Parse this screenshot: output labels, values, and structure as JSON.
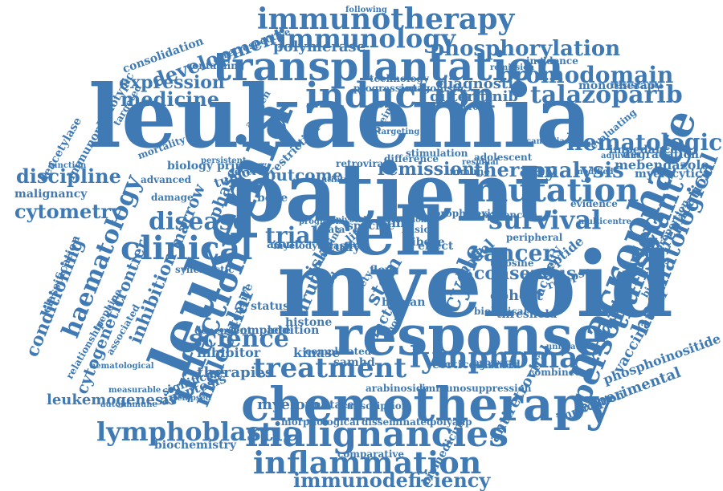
{
  "colors": {
    "word": "#3f7ab4",
    "background": "#ffffff"
  },
  "words": [
    "leukaemia",
    "myeloid",
    "patient",
    "cell",
    "response",
    "leukemia",
    "chemotherapy",
    "transplantation",
    "induction",
    "malignancies",
    "immunotherapy",
    "immunology",
    "treatment",
    "lymphoma",
    "macrophage",
    "mutation",
    "inflammation",
    "clinical",
    "talazoparib",
    "personalised",
    "lymphoblastic",
    "infection",
    "survival",
    "disease",
    "science",
    "cancer",
    "hematologic",
    "haematology",
    "bromodomain",
    "phosphorylation",
    "immunodeficiency",
    "analysis",
    "therapy",
    "remission",
    "medicine",
    "expression",
    "cytometry",
    "discipline",
    "transplant",
    "haematological",
    "development",
    "trial",
    "molecular",
    "cycle",
    "consensus",
    "outcome",
    "leukemogenesis",
    "inhibition",
    "frontier",
    "conditioning",
    "cytogenetic",
    "gilteritinib",
    "myeloma",
    "therapies",
    "inhibitor",
    "apoptosis",
    "significant",
    "kinase",
    "mutated",
    "biochemistry",
    "antiretroviral",
    "experimental",
    "phosphoinositide",
    "vaccination",
    "replication",
    "standard",
    "cohort",
    "model",
    "peptide",
    "activity",
    "relapse",
    "stem",
    "drug",
    "risk",
    "factor",
    "polymerase",
    "diagnostic",
    "monotherapy",
    "mebendazole",
    "degradation",
    "impedance",
    "myelocytic",
    "evidence",
    "tyrosine",
    "biomedicine",
    "malignancy",
    "biology",
    "marrow",
    "phase",
    "tumour",
    "primary",
    "bone",
    "study",
    "life",
    "status",
    "histone",
    "samhd",
    "threshold",
    "corticosteroid",
    "transcription",
    "disseminated",
    "morphological",
    "comparative",
    "polyadp",
    "arabinoside",
    "immunosuppression",
    "implication",
    "classification",
    "deacetylase",
    "immunophenotypic",
    "consolidation",
    "retrospective",
    "technology",
    "incidence",
    "progression",
    "antagonistic",
    "containing",
    "targeted",
    "mortality",
    "antigen",
    "restriction",
    "advanced",
    "damage",
    "severe",
    "adult",
    "specific",
    "human",
    "addition",
    "complete",
    "dependent",
    "intensive",
    "synergistic",
    "trephine",
    "associated",
    "relationship",
    "hematological",
    "measurable",
    "autoimmune",
    "relapsed",
    "complicated",
    "combined",
    "unrelated",
    "regulation",
    "approach",
    "evaluating",
    "adjuvant",
    "candidiasis",
    "proportion",
    "biopsies",
    "experience",
    "peripheral",
    "biological",
    "novel",
    "ribose",
    "basic",
    "effect",
    "flow",
    "safety",
    "blood",
    "data",
    "case",
    "slms",
    "protein",
    "difference",
    "retroviral",
    "immune",
    "residual",
    "function",
    "multicentre",
    "modified",
    "adolescent",
    "persistent",
    "following",
    "prophylaxis",
    "guideline",
    "myelodysplastic",
    "granuloma",
    "stimulation",
    "targeting",
    "utility",
    "pivotal",
    "prognosis",
    "resistant",
    "chronic",
    "remission",
    "efficacy",
    "plasma",
    "myeloproliferative",
    "cytokine",
    "oncology",
    "genetic",
    "signalling",
    "sorafenib"
  ]
}
